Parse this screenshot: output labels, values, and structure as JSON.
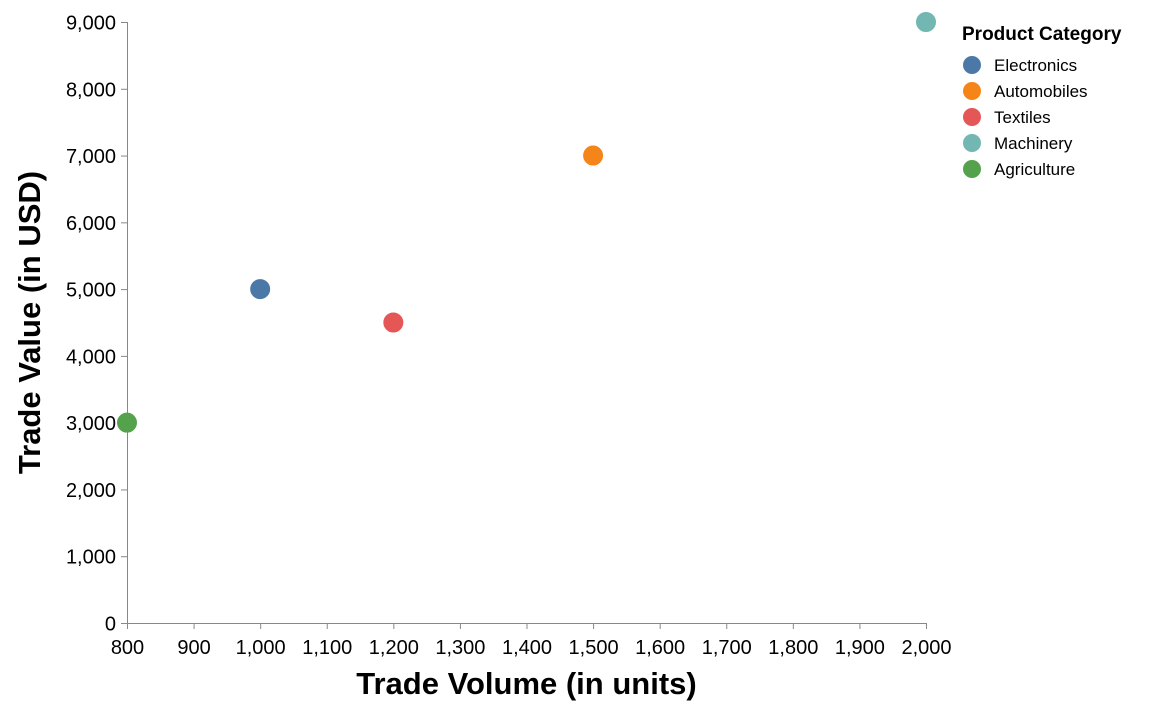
{
  "chart_data": {
    "type": "scatter",
    "xlabel": "Trade Volume (in units)",
    "ylabel": "Trade Value (in USD)",
    "xlim": [
      800,
      2000
    ],
    "ylim": [
      0,
      9000
    ],
    "x_ticks": [
      "800",
      "900",
      "1,000",
      "1,100",
      "1,200",
      "1,300",
      "1,400",
      "1,500",
      "1,600",
      "1,700",
      "1,800",
      "1,900",
      "2,000"
    ],
    "y_ticks": [
      "0",
      "1,000",
      "2,000",
      "3,000",
      "4,000",
      "5,000",
      "6,000",
      "7,000",
      "8,000",
      "9,000"
    ],
    "grid": false,
    "legend": {
      "title": "Product Category",
      "placement": "top-right"
    },
    "series": [
      {
        "name": "Electronics",
        "color": "#4c78a8",
        "x": [
          1000
        ],
        "y": [
          5000
        ]
      },
      {
        "name": "Automobiles",
        "color": "#f58518",
        "x": [
          1500
        ],
        "y": [
          7000
        ]
      },
      {
        "name": "Textiles",
        "color": "#e45756",
        "x": [
          1200
        ],
        "y": [
          4500
        ]
      },
      {
        "name": "Machinery",
        "color": "#72b7b2",
        "x": [
          2000
        ],
        "y": [
          9000
        ]
      },
      {
        "name": "Agriculture",
        "color": "#54a24b",
        "x": [
          800
        ],
        "y": [
          3000
        ]
      }
    ]
  }
}
